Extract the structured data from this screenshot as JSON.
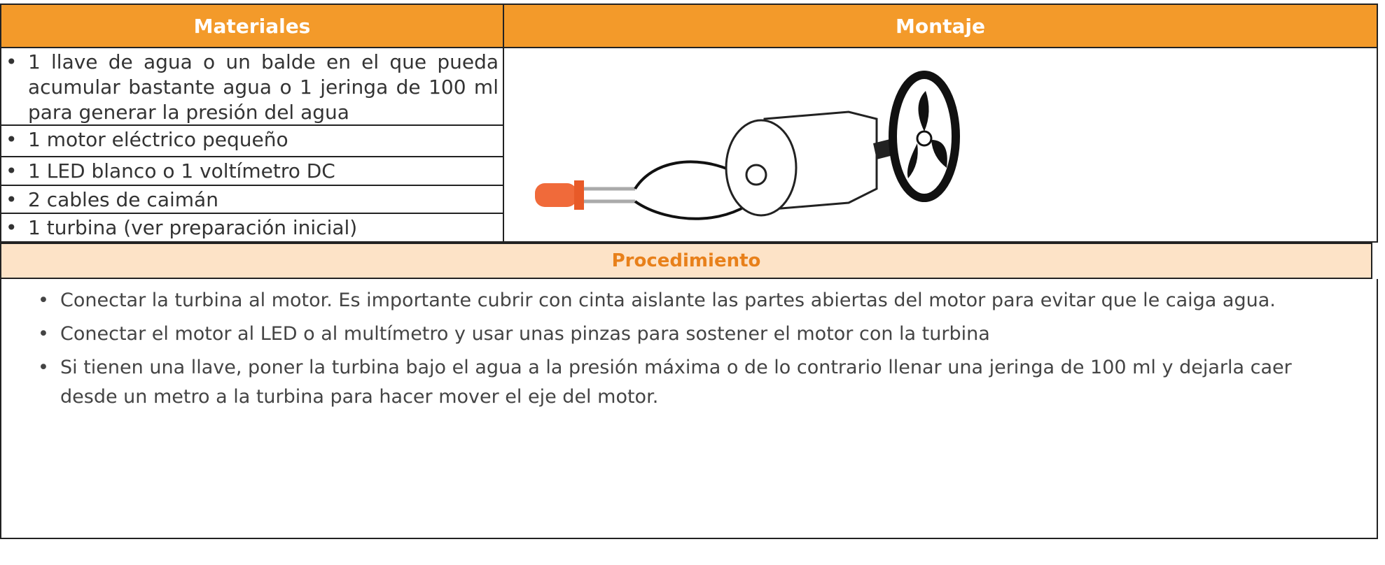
{
  "header": {
    "materiales": "Materiales",
    "montaje": "Montaje"
  },
  "materials": [
    "1 llave de agua o un balde en el que pueda acumular bastante agua o 1 jeringa de 100 ml para generar la presión del agua",
    "1 motor eléctrico pequeño",
    "1 LED blanco o 1 voltímetro DC",
    "2 cables de caimán",
    "1 turbina (ver preparación inicial)"
  ],
  "procedure": {
    "title": "Procedimiento",
    "steps": [
      "Conectar la turbina al motor.  Es importante cubrir con cinta aislante las partes abiertas del motor para evitar que le caiga agua.",
      "Conectar el motor al LED o al multímetro y usar unas pinzas para sostener el motor con la turbina",
      "Si tienen una llave, poner la turbina bajo el agua a la presión máxima o de lo contrario llenar una jeringa de 100 ml y dejarla caer desde un metro a la turbina para hacer mover el eje del motor."
    ]
  }
}
